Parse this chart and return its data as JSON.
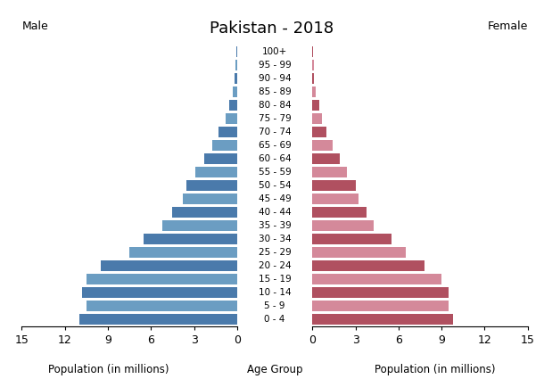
{
  "title": "Pakistan - 2018",
  "male_label": "Male",
  "female_label": "Female",
  "xlabel_left": "Population (in millions)",
  "xlabel_center": "Age Group",
  "xlabel_right": "Population (in millions)",
  "age_groups": [
    "0 - 4",
    "5 - 9",
    "10 - 14",
    "15 - 19",
    "20 - 24",
    "25 - 29",
    "30 - 34",
    "35 - 39",
    "40 - 44",
    "45 - 49",
    "50 - 54",
    "55 - 59",
    "60 - 64",
    "65 - 69",
    "70 - 74",
    "75 - 79",
    "80 - 84",
    "85 - 89",
    "90 - 94",
    "95 - 99",
    "100+"
  ],
  "male_values": [
    11.0,
    10.5,
    10.8,
    10.5,
    9.5,
    7.5,
    6.5,
    5.2,
    4.5,
    3.8,
    3.5,
    2.9,
    2.3,
    1.7,
    1.3,
    0.8,
    0.55,
    0.3,
    0.15,
    0.1,
    0.05
  ],
  "female_values": [
    9.8,
    9.5,
    9.5,
    9.0,
    7.8,
    6.5,
    5.5,
    4.3,
    3.8,
    3.2,
    3.0,
    2.4,
    1.9,
    1.4,
    1.0,
    0.65,
    0.45,
    0.25,
    0.12,
    0.08,
    0.04
  ],
  "male_colors_alt": [
    "#4a7aab",
    "#6b9dc2"
  ],
  "female_colors_alt": [
    "#b05060",
    "#d4899a"
  ],
  "xlim": 15,
  "bar_height": 0.8,
  "background_color": "#ffffff",
  "title_fontsize": 13,
  "label_fontsize": 7.5,
  "axis_fontsize": 9
}
